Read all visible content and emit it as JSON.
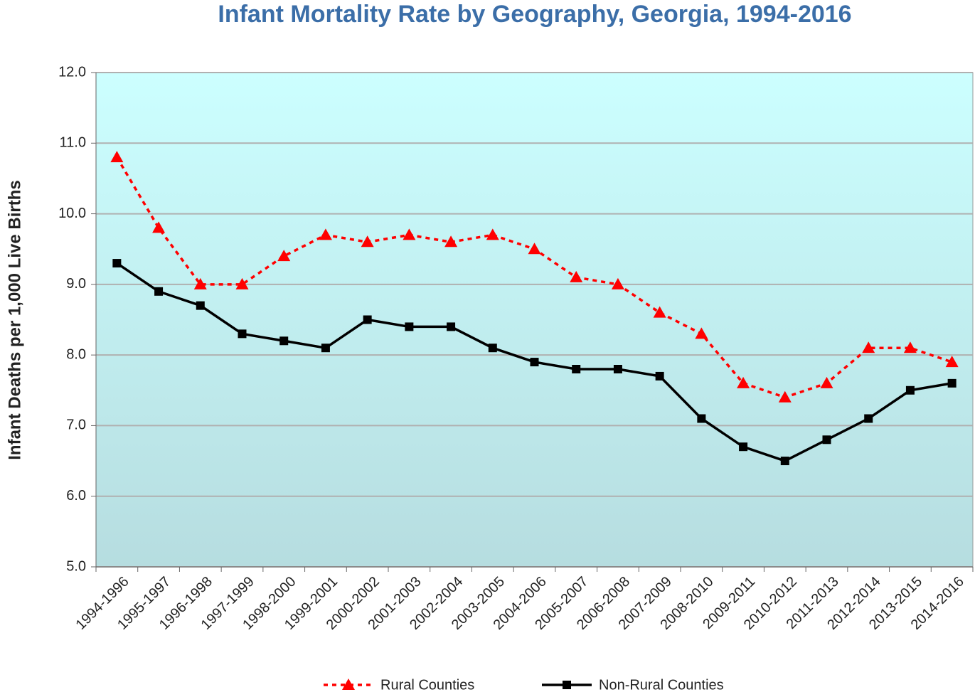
{
  "chart_data": {
    "type": "line",
    "title": "Infant Mortality Rate by Geography, Georgia, 1994-2016",
    "y_label": "Infant Deaths per 1,000 Live Births",
    "categories": [
      "1994-1996",
      "1995-1997",
      "1996-1998",
      "1997-1999",
      "1998-2000",
      "1999-2001",
      "2000-2002",
      "2001-2003",
      "2002-2004",
      "2003-2005",
      "2004-2006",
      "2005-2007",
      "2006-2008",
      "2007-2009",
      "2008-2010",
      "2009-2011",
      "2010-2012",
      "2011-2013",
      "2012-2014",
      "2013-2015",
      "2014-2016"
    ],
    "series": [
      {
        "name": "Rural Counties",
        "color": "#ff0000",
        "marker": "triangle",
        "dashed": true,
        "values": [
          10.8,
          9.8,
          9.0,
          9.0,
          9.4,
          9.7,
          9.6,
          9.7,
          9.6,
          9.7,
          9.5,
          9.1,
          9.0,
          8.6,
          8.3,
          7.6,
          7.4,
          7.6,
          8.1,
          8.1,
          7.9
        ]
      },
      {
        "name": "Non-Rural Counties",
        "color": "#000000",
        "marker": "square",
        "dashed": false,
        "values": [
          9.3,
          8.9,
          8.7,
          8.3,
          8.2,
          8.1,
          8.5,
          8.4,
          8.4,
          8.1,
          7.9,
          7.8,
          7.8,
          7.7,
          7.1,
          6.7,
          6.5,
          6.8,
          7.1,
          7.5,
          7.6
        ]
      }
    ],
    "ylim": [
      5,
      12
    ],
    "yticks": [
      {
        "value": 5,
        "label": "5.0"
      },
      {
        "value": 6,
        "label": "6.0"
      },
      {
        "value": 7,
        "label": "7.0"
      },
      {
        "value": 8,
        "label": "8.0"
      },
      {
        "value": 9,
        "label": "9.0"
      },
      {
        "value": 10,
        "label": "10.0"
      },
      {
        "value": 11,
        "label": "11.0"
      },
      {
        "value": 12,
        "label": "12.0"
      }
    ],
    "grid": true,
    "legend": "bottom"
  }
}
